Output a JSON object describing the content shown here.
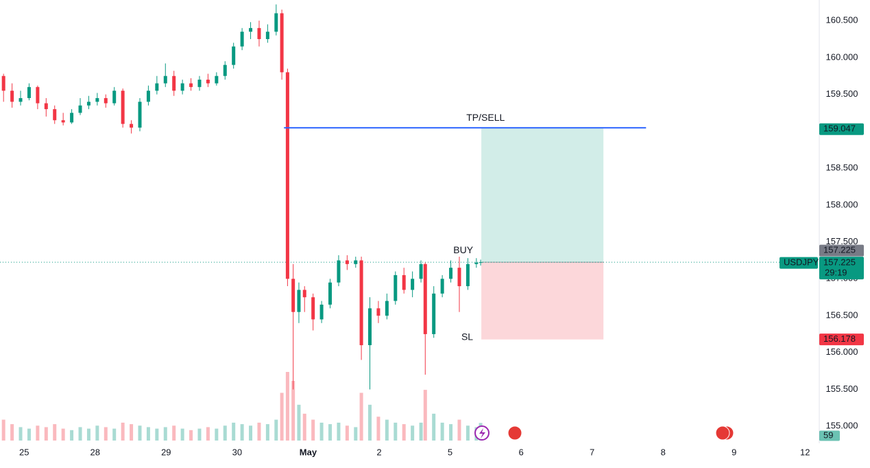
{
  "chart_data": {
    "type": "candlestick",
    "symbol": "USDJPY",
    "countdown": "29:19",
    "up_color": "#089981",
    "down_color": "#f23645",
    "grid": true,
    "xlim": [
      -0.34,
      11.2
    ],
    "ylim": [
      154.77,
      160.78
    ],
    "xticks": [
      {
        "value": 0,
        "label": "25"
      },
      {
        "value": 1,
        "label": "28"
      },
      {
        "value": 2,
        "label": "29"
      },
      {
        "value": 3,
        "label": "30"
      },
      {
        "value": 4,
        "label": "May"
      },
      {
        "value": 5,
        "label": "2"
      },
      {
        "value": 6,
        "label": "5"
      },
      {
        "value": 7,
        "label": "6"
      },
      {
        "value": 8,
        "label": "7"
      },
      {
        "value": 9,
        "label": "8"
      },
      {
        "value": 10,
        "label": "9"
      },
      {
        "value": 11,
        "label": "12"
      }
    ],
    "yticks": [
      {
        "value": 155,
        "label": "155.000"
      },
      {
        "value": 155.5,
        "label": "155.500"
      },
      {
        "value": 156,
        "label": "156.000"
      },
      {
        "value": 156.5,
        "label": "156.500"
      },
      {
        "value": 157,
        "label": "157.000"
      },
      {
        "value": 157.5,
        "label": "157.500"
      },
      {
        "value": 158,
        "label": "158.000"
      },
      {
        "value": 158.5,
        "label": "158.500"
      },
      {
        "value": 159,
        "label": "159.000"
      },
      {
        "value": 159.5,
        "label": "159.500"
      },
      {
        "value": 160,
        "label": "160.000"
      },
      {
        "value": 160.5,
        "label": "160.500"
      }
    ],
    "x": [
      -0.29,
      -0.17,
      -0.05,
      0.07,
      0.19,
      0.31,
      0.43,
      0.55,
      0.67,
      0.79,
      0.91,
      1.03,
      1.15,
      1.27,
      1.39,
      1.51,
      1.63,
      1.75,
      1.87,
      1.99,
      2.11,
      2.23,
      2.35,
      2.47,
      2.59,
      2.71,
      2.83,
      2.95,
      3.07,
      3.19,
      3.31,
      3.43,
      3.55,
      3.63,
      3.71,
      3.79,
      3.87,
      3.95,
      4.07,
      4.19,
      4.31,
      4.43,
      4.55,
      4.67,
      4.75,
      4.87,
      4.99,
      5.11,
      5.23,
      5.35,
      5.47,
      5.59,
      5.65,
      5.77,
      5.89,
      6.01,
      6.13,
      6.25,
      6.37,
      6.43
    ],
    "open": [
      159.75,
      159.55,
      159.4,
      159.45,
      159.6,
      159.38,
      159.3,
      159.15,
      159.12,
      159.25,
      159.35,
      159.4,
      159.45,
      159.38,
      159.55,
      159.1,
      159.05,
      159.4,
      159.55,
      159.65,
      159.75,
      159.55,
      159.65,
      159.6,
      159.7,
      159.65,
      159.75,
      159.9,
      160.15,
      160.35,
      160.4,
      160.25,
      160.35,
      160.6,
      159.8,
      157.0,
      156.55,
      156.85,
      156.75,
      156.45,
      156.65,
      156.95,
      157.25,
      157.2,
      157.25,
      156.1,
      156.6,
      156.5,
      156.7,
      157.05,
      156.85,
      157.0,
      157.2,
      156.25,
      156.8,
      157.0,
      157.15,
      156.9,
      157.2,
      157.22
    ],
    "high": [
      159.78,
      159.65,
      159.55,
      159.65,
      159.62,
      159.45,
      159.35,
      159.25,
      159.3,
      159.45,
      159.48,
      159.52,
      159.5,
      159.6,
      159.58,
      159.15,
      159.45,
      159.62,
      159.75,
      159.92,
      159.82,
      159.7,
      159.72,
      159.75,
      159.78,
      159.8,
      159.95,
      160.2,
      160.4,
      160.48,
      160.5,
      160.45,
      160.72,
      160.65,
      159.85,
      157.2,
      156.95,
      156.9,
      156.8,
      156.7,
      157.0,
      157.32,
      157.32,
      157.3,
      157.3,
      156.75,
      156.7,
      156.8,
      157.1,
      157.15,
      157.1,
      157.25,
      157.22,
      156.9,
      157.05,
      157.25,
      157.3,
      157.28,
      157.28,
      157.26
    ],
    "low": [
      159.4,
      159.32,
      159.35,
      159.42,
      159.3,
      159.2,
      159.1,
      159.08,
      159.1,
      159.22,
      159.3,
      159.35,
      159.32,
      159.35,
      159.05,
      158.97,
      159.0,
      159.35,
      159.5,
      159.6,
      159.48,
      159.5,
      159.55,
      159.55,
      159.6,
      159.62,
      159.7,
      159.85,
      160.1,
      160.25,
      160.15,
      160.2,
      160.3,
      159.7,
      156.9,
      155.5,
      156.4,
      156.55,
      156.3,
      156.4,
      156.6,
      156.9,
      157.12,
      157.15,
      155.9,
      155.5,
      156.4,
      156.45,
      156.65,
      156.8,
      156.75,
      156.95,
      155.7,
      156.2,
      156.75,
      156.95,
      156.55,
      156.85,
      157.15,
      157.18
    ],
    "close": [
      159.55,
      159.4,
      159.45,
      159.6,
      159.38,
      159.3,
      159.15,
      159.12,
      159.25,
      159.35,
      159.4,
      159.45,
      159.38,
      159.55,
      159.1,
      159.05,
      159.4,
      159.55,
      159.65,
      159.75,
      159.55,
      159.65,
      159.6,
      159.7,
      159.65,
      159.75,
      159.9,
      160.15,
      160.35,
      160.4,
      160.25,
      160.35,
      160.6,
      159.8,
      157.0,
      156.55,
      156.85,
      156.75,
      156.45,
      156.65,
      156.95,
      157.25,
      157.2,
      157.25,
      156.1,
      156.6,
      156.5,
      156.7,
      157.05,
      156.85,
      157.0,
      157.2,
      156.25,
      156.8,
      157.0,
      157.15,
      156.9,
      157.2,
      157.22,
      157.225
    ],
    "volume": [
      70,
      55,
      45,
      40,
      50,
      45,
      55,
      40,
      35,
      45,
      40,
      50,
      45,
      40,
      60,
      55,
      50,
      45,
      40,
      45,
      50,
      40,
      35,
      40,
      45,
      40,
      50,
      60,
      55,
      50,
      60,
      55,
      70,
      160,
      230,
      200,
      120,
      90,
      70,
      60,
      55,
      60,
      50,
      45,
      160,
      120,
      80,
      70,
      60,
      55,
      50,
      60,
      170,
      90,
      60,
      55,
      70,
      50,
      45,
      59
    ],
    "take_profit_line": {
      "value": 159.047,
      "x_start": 3.66,
      "x_end": 8.76,
      "label": "TP/SELL"
    },
    "position": {
      "entry": 157.225,
      "take_profit": 159.047,
      "stop_loss": 156.178,
      "x_start": 6.44,
      "x_end": 8.16,
      "entry_label": "BUY",
      "stop_label": "SL"
    }
  }
}
